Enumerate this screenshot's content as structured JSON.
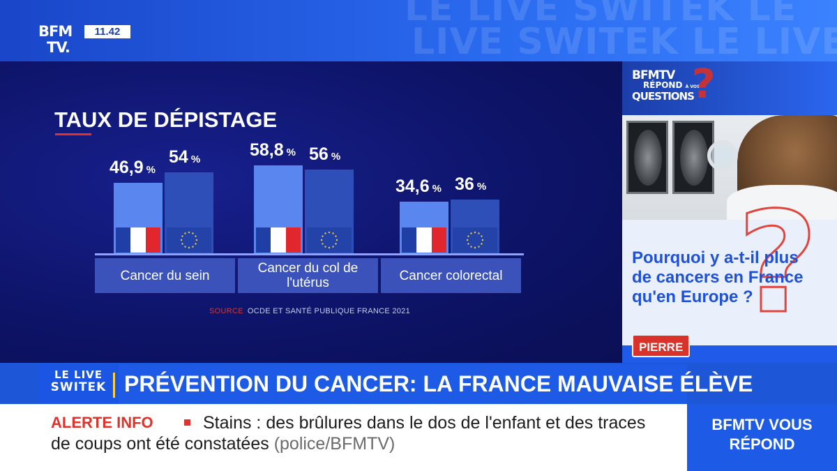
{
  "channel": {
    "logo_line1": "BFM",
    "logo_line2": "TV.",
    "clock": "11.42",
    "watermark_line1": "LE LIVE SWITEK LE",
    "watermark_line2": "LIVE SWITEK LE LIVE SWIT"
  },
  "chart_data": {
    "type": "bar",
    "title": "TAUX DE DÉPISTAGE",
    "categories": [
      "Cancer du sein",
      "Cancer du col de l'utérus",
      "Cancer colorectal"
    ],
    "series": [
      {
        "flag": "France",
        "values": [
          46.9,
          58.8,
          34.6
        ]
      },
      {
        "flag": "EU",
        "values": [
          54,
          56,
          36
        ]
      }
    ],
    "value_labels": [
      [
        "46,9",
        "54"
      ],
      [
        "58,8",
        "56"
      ],
      [
        "34,6",
        "36"
      ]
    ],
    "unit": "%",
    "source_key": "SOURCE",
    "source_text": "OCDE ET SANTÉ PUBLIQUE FRANCE 2021",
    "colors": {
      "france_bar": "#5a86ef",
      "eu_bar": "#2e4fb7",
      "flag_blue": "#1f3fa6",
      "flag_red": "#e1262d",
      "eu_star": "#f5d33a"
    }
  },
  "side_panel": {
    "logo_a": "BFMTV",
    "logo_b": "RÉPOND",
    "logo_b_small": "À VOS",
    "logo_c": "QUESTIONS",
    "question": "Pourquoi y a-t-il plus de cancers en France qu'en Europe ?",
    "asker": "PIERRE"
  },
  "lower_third": {
    "show_line1": "LE LIVE",
    "show_line2": "SWITEK",
    "headline": "PRÉVENTION DU CANCER: LA FRANCE MAUVAISE ÉLÈVE"
  },
  "ticker": {
    "label": "ALERTE INFO",
    "text": "Stains : des brûlures dans le dos de l'enfant et des traces de coups ont été constatées",
    "source": "(police/BFMTV)",
    "corner_line1": "BFMTV VOUS",
    "corner_line2": "RÉPOND"
  }
}
